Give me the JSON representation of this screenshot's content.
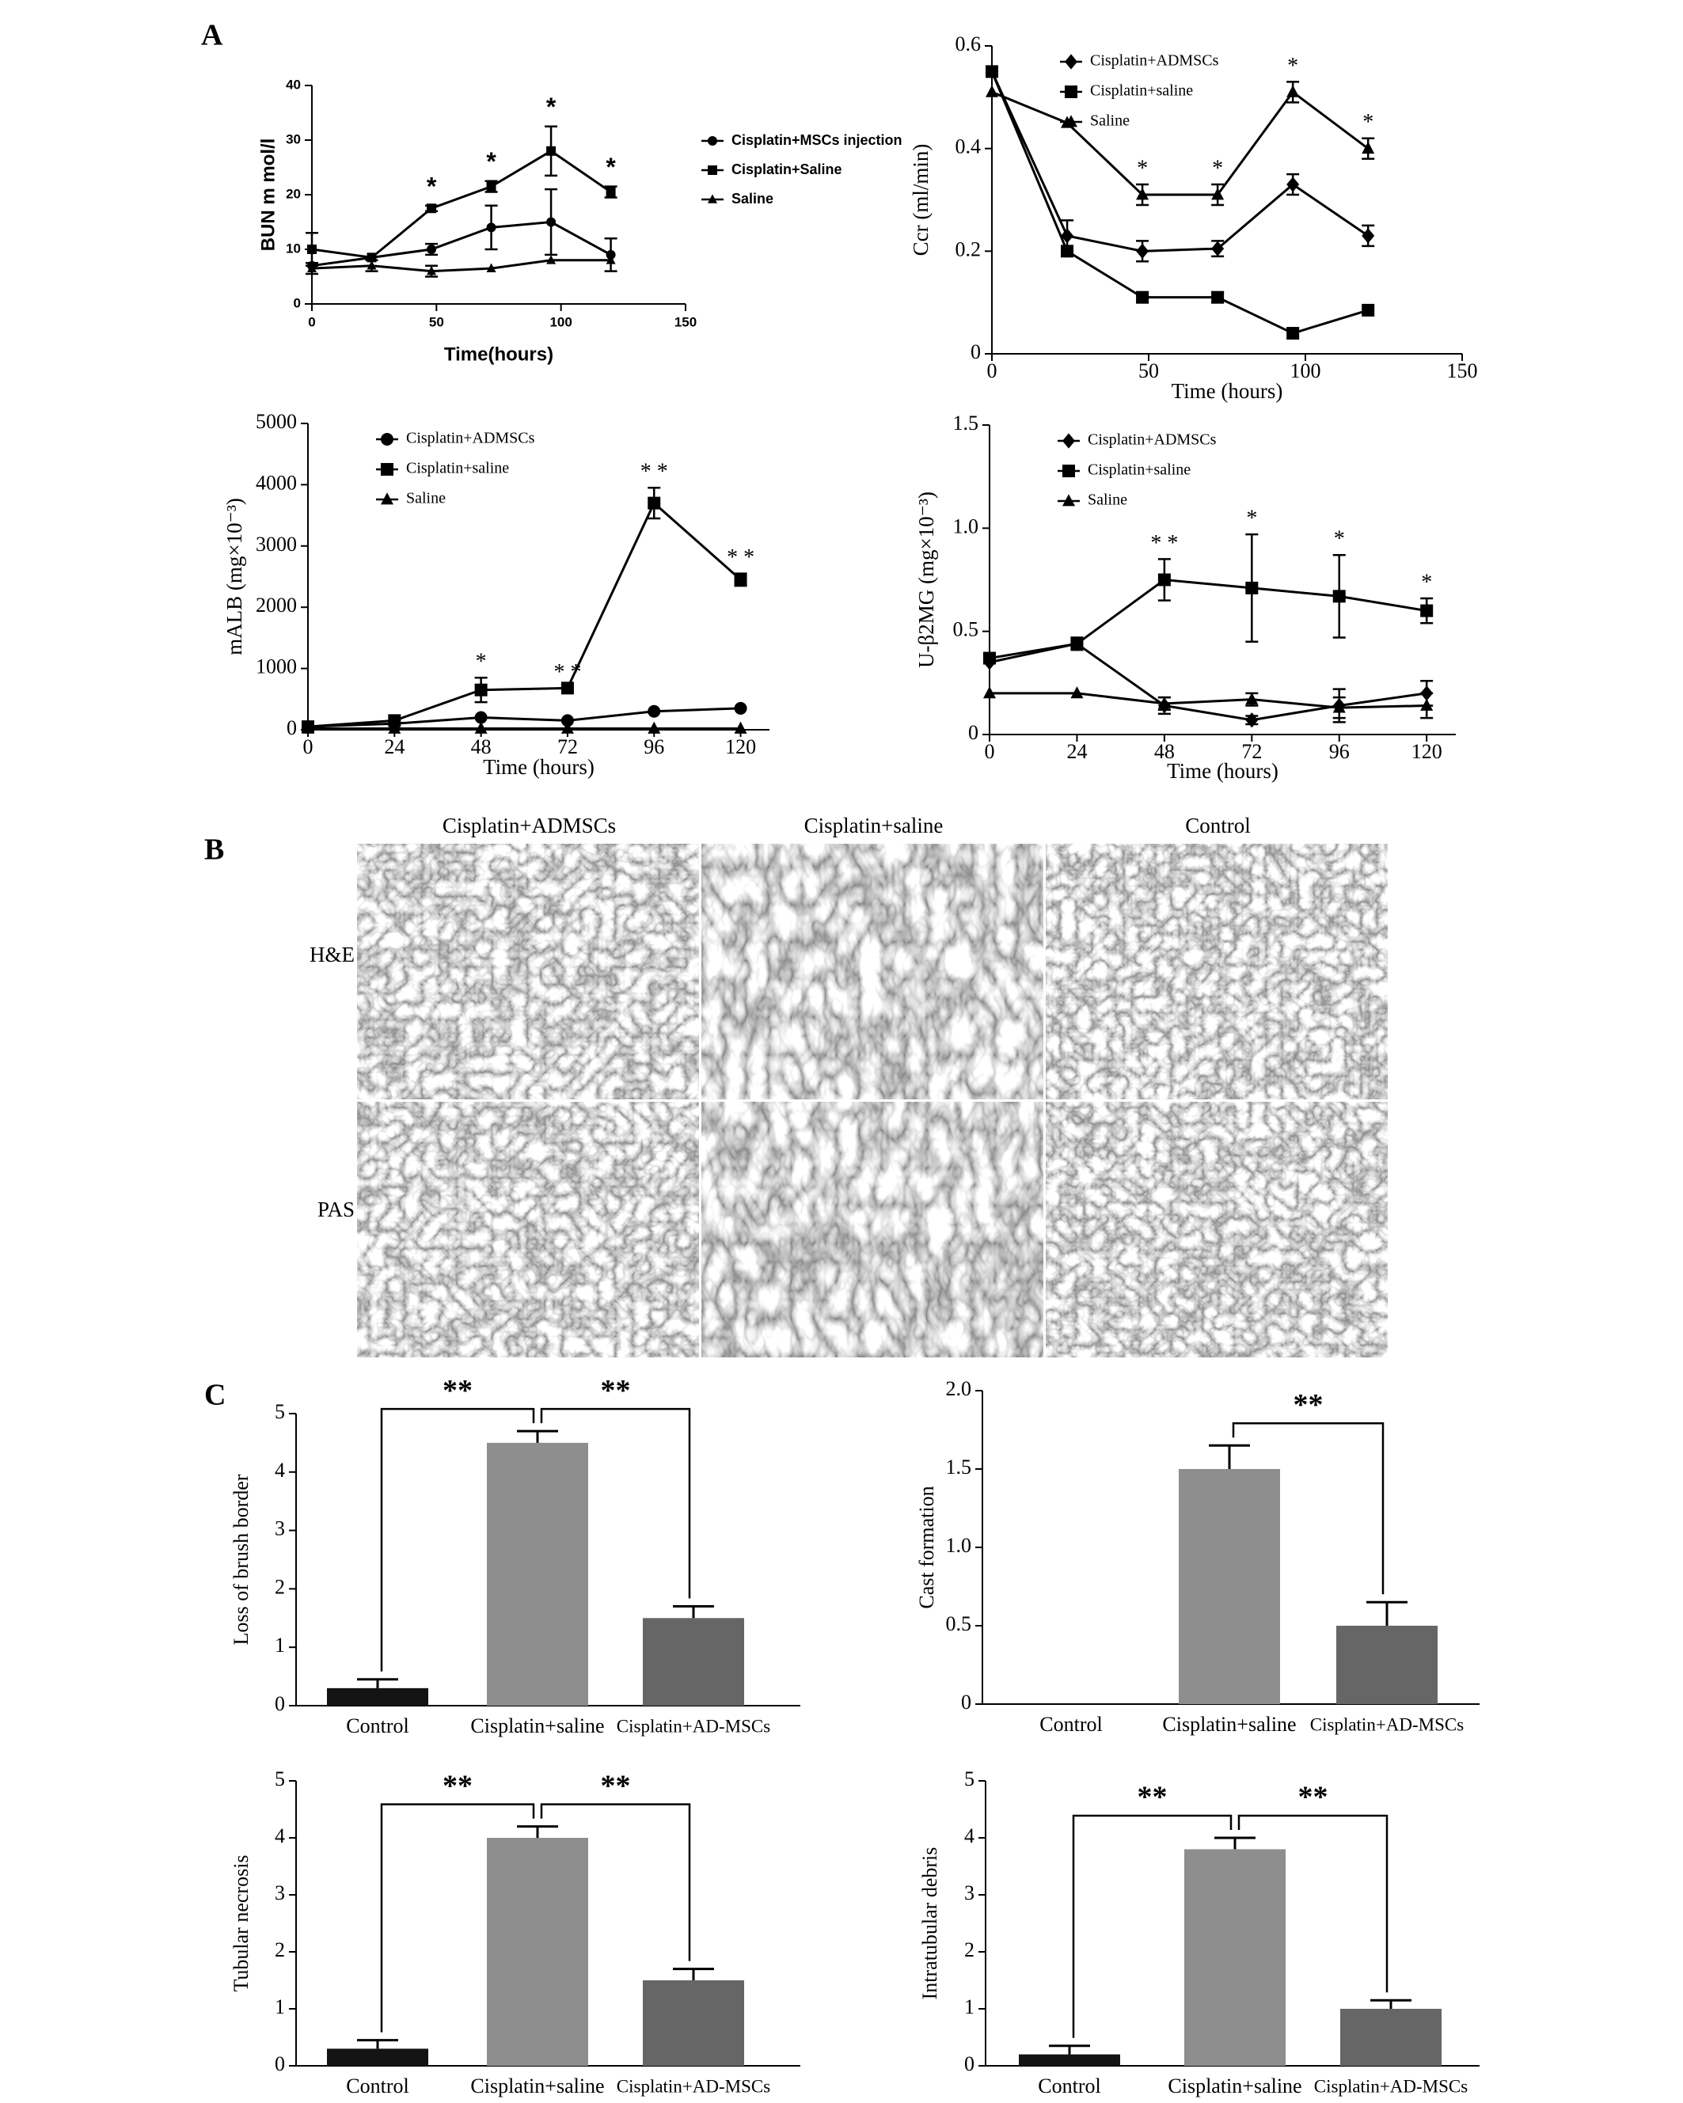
{
  "panel_labels": [
    "A",
    "B",
    "C"
  ],
  "histology": {
    "columns": [
      "Cisplatin+ADMSCs",
      "Cisplatin+saline",
      "Control"
    ],
    "rows": [
      "H&E",
      "PAS"
    ]
  },
  "chart_data": [
    {
      "type": "line",
      "ylabel": "BUN m mol/l",
      "xlabel": "Time(hours)",
      "x": [
        0,
        24,
        48,
        72,
        96,
        120
      ],
      "xlim": [
        0,
        150
      ],
      "xticks": [
        0,
        50,
        100,
        150
      ],
      "ylim": [
        0,
        40
      ],
      "yticks": [
        0,
        10,
        20,
        30,
        40
      ],
      "legend": "right",
      "series": [
        {
          "name": "Cisplatin+MSCs injection",
          "color": "#000000",
          "marker": "circle",
          "values": [
            7,
            8.5,
            10,
            14,
            15,
            9
          ],
          "errors": [
            null,
            null,
            1,
            4,
            6,
            3
          ]
        },
        {
          "name": "Cisplatin+Saline",
          "color": "#000000",
          "marker": "square",
          "values": [
            10,
            8.5,
            17.5,
            21.5,
            28,
            20.5
          ],
          "errors": [
            3,
            null,
            0.5,
            1,
            4.5,
            1
          ]
        },
        {
          "name": "Saline",
          "color": "#000000",
          "marker": "triangle",
          "values": [
            6.5,
            7,
            6,
            6.5,
            8,
            8
          ],
          "errors": [
            1,
            1,
            1,
            null,
            null,
            null
          ]
        }
      ],
      "annotations": [
        {
          "x": 48,
          "text": "*"
        },
        {
          "x": 72,
          "text": "*"
        },
        {
          "x": 96,
          "text": "*"
        },
        {
          "x": 120,
          "text": "*"
        }
      ]
    },
    {
      "type": "line",
      "ylabel": "Ccr (ml/min)",
      "xlabel": "Time (hours)",
      "x": [
        0,
        24,
        48,
        72,
        96,
        120
      ],
      "xlim": [
        0,
        150
      ],
      "xticks": [
        0,
        50,
        100,
        150
      ],
      "ylim": [
        0,
        0.6
      ],
      "yticks": [
        0,
        0.2,
        0.4,
        0.6
      ],
      "legend": "upper-left",
      "series": [
        {
          "name": "Cisplatin+ADMSCs",
          "color": "#000000",
          "marker": "diamond",
          "values": [
            0.55,
            0.23,
            0.2,
            0.205,
            0.33,
            0.23
          ],
          "errors": [
            null,
            0.03,
            0.02,
            0.015,
            0.02,
            0.02
          ]
        },
        {
          "name": "Cisplatin+saline",
          "color": "#000000",
          "marker": "square",
          "values": [
            0.55,
            0.2,
            0.11,
            0.11,
            0.04,
            0.085
          ],
          "errors": [
            null,
            null,
            0.01,
            0.01,
            null,
            null
          ]
        },
        {
          "name": "Saline",
          "color": "#000000",
          "marker": "triangle",
          "values": [
            0.51,
            0.45,
            0.31,
            0.31,
            0.51,
            0.4
          ],
          "errors": [
            null,
            null,
            0.02,
            0.02,
            0.02,
            0.02
          ]
        }
      ],
      "annotations": [
        {
          "x": 48,
          "text": "*"
        },
        {
          "x": 72,
          "text": "*"
        },
        {
          "x": 96,
          "text": "*"
        },
        {
          "x": 120,
          "text": "*"
        }
      ]
    },
    {
      "type": "line",
      "ylabel": "mALB (mg×10⁻³)",
      "xlabel": "Time (hours)",
      "x": [
        0,
        24,
        48,
        72,
        96,
        120
      ],
      "xlim": [
        0,
        128
      ],
      "xticks": [
        0,
        24,
        48,
        72,
        96,
        120
      ],
      "ylim": [
        0,
        5000
      ],
      "yticks": [
        0,
        1000,
        2000,
        3000,
        4000,
        5000
      ],
      "legend": "upper-left",
      "series": [
        {
          "name": "Cisplatin+ADMSCs",
          "color": "#000000",
          "marker": "circle",
          "values": [
            50,
            100,
            200,
            150,
            300,
            350
          ],
          "errors": [
            null,
            null,
            null,
            null,
            null,
            null
          ]
        },
        {
          "name": "Cisplatin+saline",
          "color": "#000000",
          "marker": "square",
          "values": [
            50,
            150,
            650,
            680,
            3700,
            2450
          ],
          "errors": [
            null,
            null,
            200,
            null,
            250,
            100
          ]
        },
        {
          "name": "Saline",
          "color": "#000000",
          "marker": "triangle",
          "values": [
            20,
            20,
            20,
            20,
            20,
            20
          ],
          "errors": [
            null,
            null,
            null,
            null,
            null,
            null
          ]
        }
      ],
      "annotations": [
        {
          "x": 48,
          "text": "*"
        },
        {
          "x": 72,
          "text": "* *"
        },
        {
          "x": 96,
          "text": "* *"
        },
        {
          "x": 120,
          "text": "* *"
        }
      ]
    },
    {
      "type": "line",
      "ylabel": "U-β2MG (mg×10⁻³)",
      "xlabel": "Time (hours)",
      "x": [
        0,
        24,
        48,
        72,
        96,
        120
      ],
      "xlim": [
        0,
        128
      ],
      "xticks": [
        0,
        24,
        48,
        72,
        96,
        120
      ],
      "ylim": [
        0,
        1.5
      ],
      "yticks": [
        0,
        0.5,
        {
          "value": 1,
          "label": "1.0"
        },
        1.5
      ],
      "legend": "upper-left",
      "series": [
        {
          "name": "Cisplatin+ADMSCs",
          "color": "#000000",
          "marker": "diamond",
          "values": [
            0.35,
            0.44,
            0.14,
            0.07,
            0.14,
            0.2
          ],
          "errors": [
            null,
            0.02,
            0.04,
            0.02,
            0.08,
            0.06
          ]
        },
        {
          "name": "Cisplatin+saline",
          "color": "#000000",
          "marker": "square",
          "values": [
            0.37,
            0.44,
            0.75,
            0.71,
            0.67,
            0.6
          ],
          "errors": [
            null,
            0.03,
            0.1,
            0.26,
            0.2,
            0.06
          ]
        },
        {
          "name": "Saline",
          "color": "#000000",
          "marker": "triangle",
          "values": [
            0.2,
            0.2,
            0.15,
            0.17,
            0.13,
            0.14
          ],
          "errors": [
            null,
            null,
            0.03,
            0.03,
            0.05,
            0.06
          ]
        }
      ],
      "annotations": [
        {
          "x": 48,
          "text": "* *"
        },
        {
          "x": 72,
          "text": "*"
        },
        {
          "x": 96,
          "text": "*"
        },
        {
          "x": 120,
          "text": "*"
        }
      ]
    },
    {
      "type": "bar",
      "ylabel": "Loss of brush border",
      "categories": [
        "Control",
        "Cisplatin+saline",
        "Cisplatin+AD-MSCs"
      ],
      "colors": [
        "#141414",
        "#8e8e8e",
        "#666666"
      ],
      "values": [
        0.3,
        4.5,
        1.5
      ],
      "errors": [
        0.15,
        0.2,
        0.2
      ],
      "ylim": [
        0,
        5
      ],
      "yticks": [
        0,
        1,
        2,
        3,
        4,
        5
      ],
      "comparisons": [
        {
          "pair": [
            0,
            1
          ],
          "text": "**"
        },
        {
          "pair": [
            1,
            2
          ],
          "text": "**"
        }
      ]
    },
    {
      "type": "bar",
      "ylabel": "Cast formation",
      "categories": [
        "Control",
        "Cisplatin+saline",
        "Cisplatin+AD-MSCs"
      ],
      "colors": [
        "#141414",
        "#8e8e8e",
        "#666666"
      ],
      "values": [
        0,
        1.5,
        0.5
      ],
      "errors": [
        null,
        0.15,
        0.15
      ],
      "ylim": [
        0,
        2
      ],
      "yticks": [
        0,
        0.5,
        {
          "value": 1,
          "label": "1.0"
        },
        1.5,
        {
          "value": 2,
          "label": "2.0"
        }
      ],
      "comparisons": [
        {
          "pair": [
            1,
            2
          ],
          "text": "**"
        }
      ]
    },
    {
      "type": "bar",
      "ylabel": "Tubular necrosis",
      "categories": [
        "Control",
        "Cisplatin+saline",
        "Cisplatin+AD-MSCs"
      ],
      "colors": [
        "#141414",
        "#8e8e8e",
        "#666666"
      ],
      "values": [
        0.3,
        4,
        1.5
      ],
      "errors": [
        0.15,
        0.2,
        0.2
      ],
      "ylim": [
        0,
        5
      ],
      "yticks": [
        0,
        1,
        2,
        3,
        4,
        5
      ],
      "comparisons": [
        {
          "pair": [
            0,
            1
          ],
          "text": "**"
        },
        {
          "pair": [
            1,
            2
          ],
          "text": "**"
        }
      ]
    },
    {
      "type": "bar",
      "ylabel": "Intratubular debris",
      "categories": [
        "Control",
        "Cisplatin+saline",
        "Cisplatin+AD-MSCs"
      ],
      "colors": [
        "#141414",
        "#8e8e8e",
        "#666666"
      ],
      "values": [
        0.2,
        3.8,
        1
      ],
      "errors": [
        0.15,
        0.2,
        0.15
      ],
      "ylim": [
        0,
        5
      ],
      "yticks": [
        0,
        1,
        2,
        3,
        4,
        5
      ],
      "comparisons": [
        {
          "pair": [
            0,
            1
          ],
          "text": "**"
        },
        {
          "pair": [
            1,
            2
          ],
          "text": "**"
        }
      ]
    }
  ]
}
